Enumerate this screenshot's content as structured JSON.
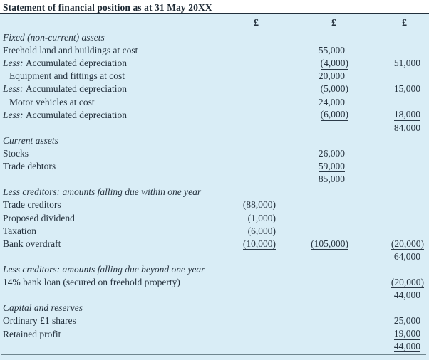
{
  "title": "Statement of financial position as at 31 May 20XX",
  "columns": {
    "c1": "£",
    "c2": "£",
    "c3": "£"
  },
  "colors": {
    "table_background": "#d9edf6",
    "text": "#26333f",
    "rule": "#2c3b49",
    "bottom_rule": "#6f868e"
  },
  "rows": [
    {
      "label": "Fixed (non-current) assets",
      "italic": true
    },
    {
      "label": "Freehold land and buildings at cost",
      "c2": "55,000"
    },
    {
      "prefix": "Less:",
      "label": "Accumulated depreciation",
      "c2": "(4,000)",
      "c2u": "single",
      "c3": "51,000"
    },
    {
      "label": "Equipment and fittings at cost",
      "indent": true,
      "c2": "20,000"
    },
    {
      "prefix": "Less:",
      "label": "Accumulated depreciation",
      "c2": "(5,000)",
      "c2u": "single",
      "c3": "15,000"
    },
    {
      "label": "Motor vehicles at cost",
      "indent": true,
      "c2": "24,000"
    },
    {
      "prefix": "Less:",
      "label": "Accumulated depreciation",
      "c2": "(6,000)",
      "c2u": "single",
      "c3": "18,000",
      "c3u": "single"
    },
    {
      "c3": "84,000"
    },
    {
      "label": "Current assets",
      "italic": true
    },
    {
      "label": "Stocks",
      "c2": "26,000"
    },
    {
      "label": "Trade debtors",
      "c2": "59,000",
      "c2u": "single"
    },
    {
      "c2": "85,000"
    },
    {
      "label": "Less creditors: amounts falling due within one year",
      "italic": true
    },
    {
      "label": "Trade creditors",
      "c1": "(88,000)"
    },
    {
      "label": "Proposed dividend",
      "c1": "(1,000)"
    },
    {
      "label": "Taxation",
      "c1": "(6,000)"
    },
    {
      "label": "Bank overdraft",
      "c1": "(10,000)",
      "c1u": "single",
      "c2": "(105,000)",
      "c2u": "single",
      "c3": "(20,000)",
      "c3u": "single"
    },
    {
      "c3": "64,000"
    },
    {
      "label": "Less creditors: amounts falling due beyond one year",
      "italic": true
    },
    {
      "label": "14% bank loan (secured on freehold property)",
      "c3": "(20,000)",
      "c3u": "single"
    },
    {
      "c3": "44,000"
    },
    {
      "label": "Capital and reserves",
      "italic": true,
      "c3_rule": true
    },
    {
      "label": "Ordinary £1 shares",
      "c3": "25,000"
    },
    {
      "label": "Retained profit",
      "c3": "19,000",
      "c3u": "single"
    },
    {
      "c3": "44,000",
      "c3u": "double"
    }
  ]
}
